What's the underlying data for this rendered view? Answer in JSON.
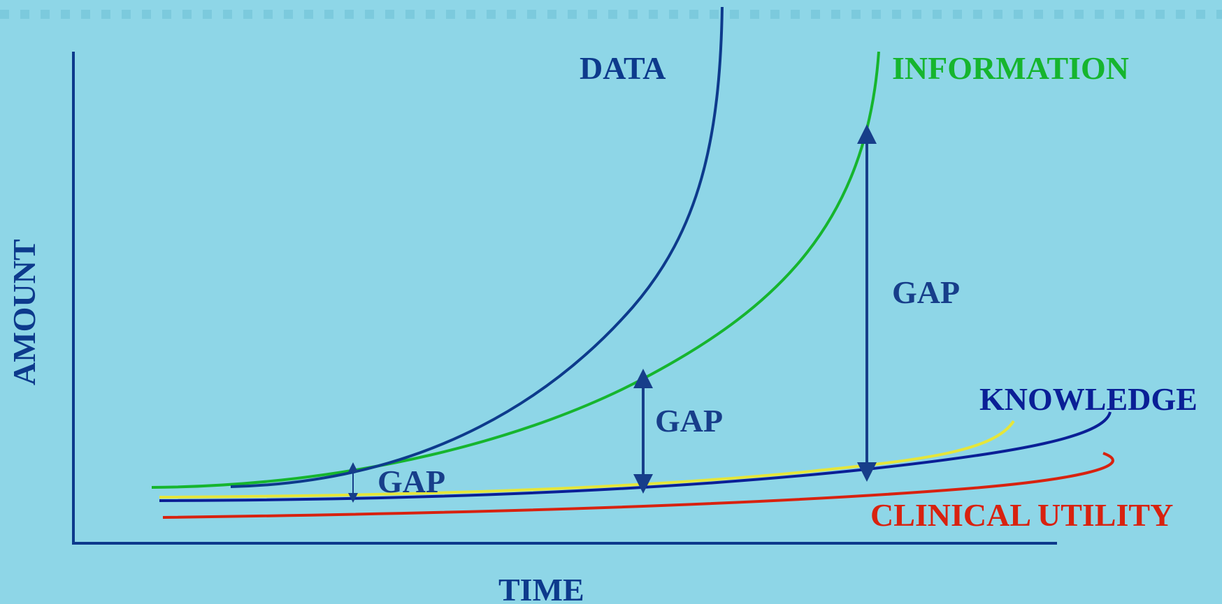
{
  "diagram": {
    "axes": {
      "x_label": "TIME",
      "y_label": "AMOUNT"
    },
    "curves": {
      "data": {
        "label": "DATA",
        "color": "#0d3a8c"
      },
      "information": {
        "label": "INFORMATION",
        "color": "#16b52e"
      },
      "knowledge": {
        "label": "KNOWLEDGE",
        "color": "#0a1f96"
      },
      "clinical_utility": {
        "label": "CLINICAL UTILITY",
        "color": "#d8220f"
      },
      "unlabeled_curve": {
        "color": "#e6e63a"
      }
    },
    "gaps": [
      {
        "label": "GAP"
      },
      {
        "label": "GAP"
      },
      {
        "label": "GAP"
      }
    ],
    "colors": {
      "background": "#8ed6e7",
      "axis": "#0d3a8c",
      "gap_text": "#173e8a",
      "header_dots": "#7ccadd"
    }
  }
}
